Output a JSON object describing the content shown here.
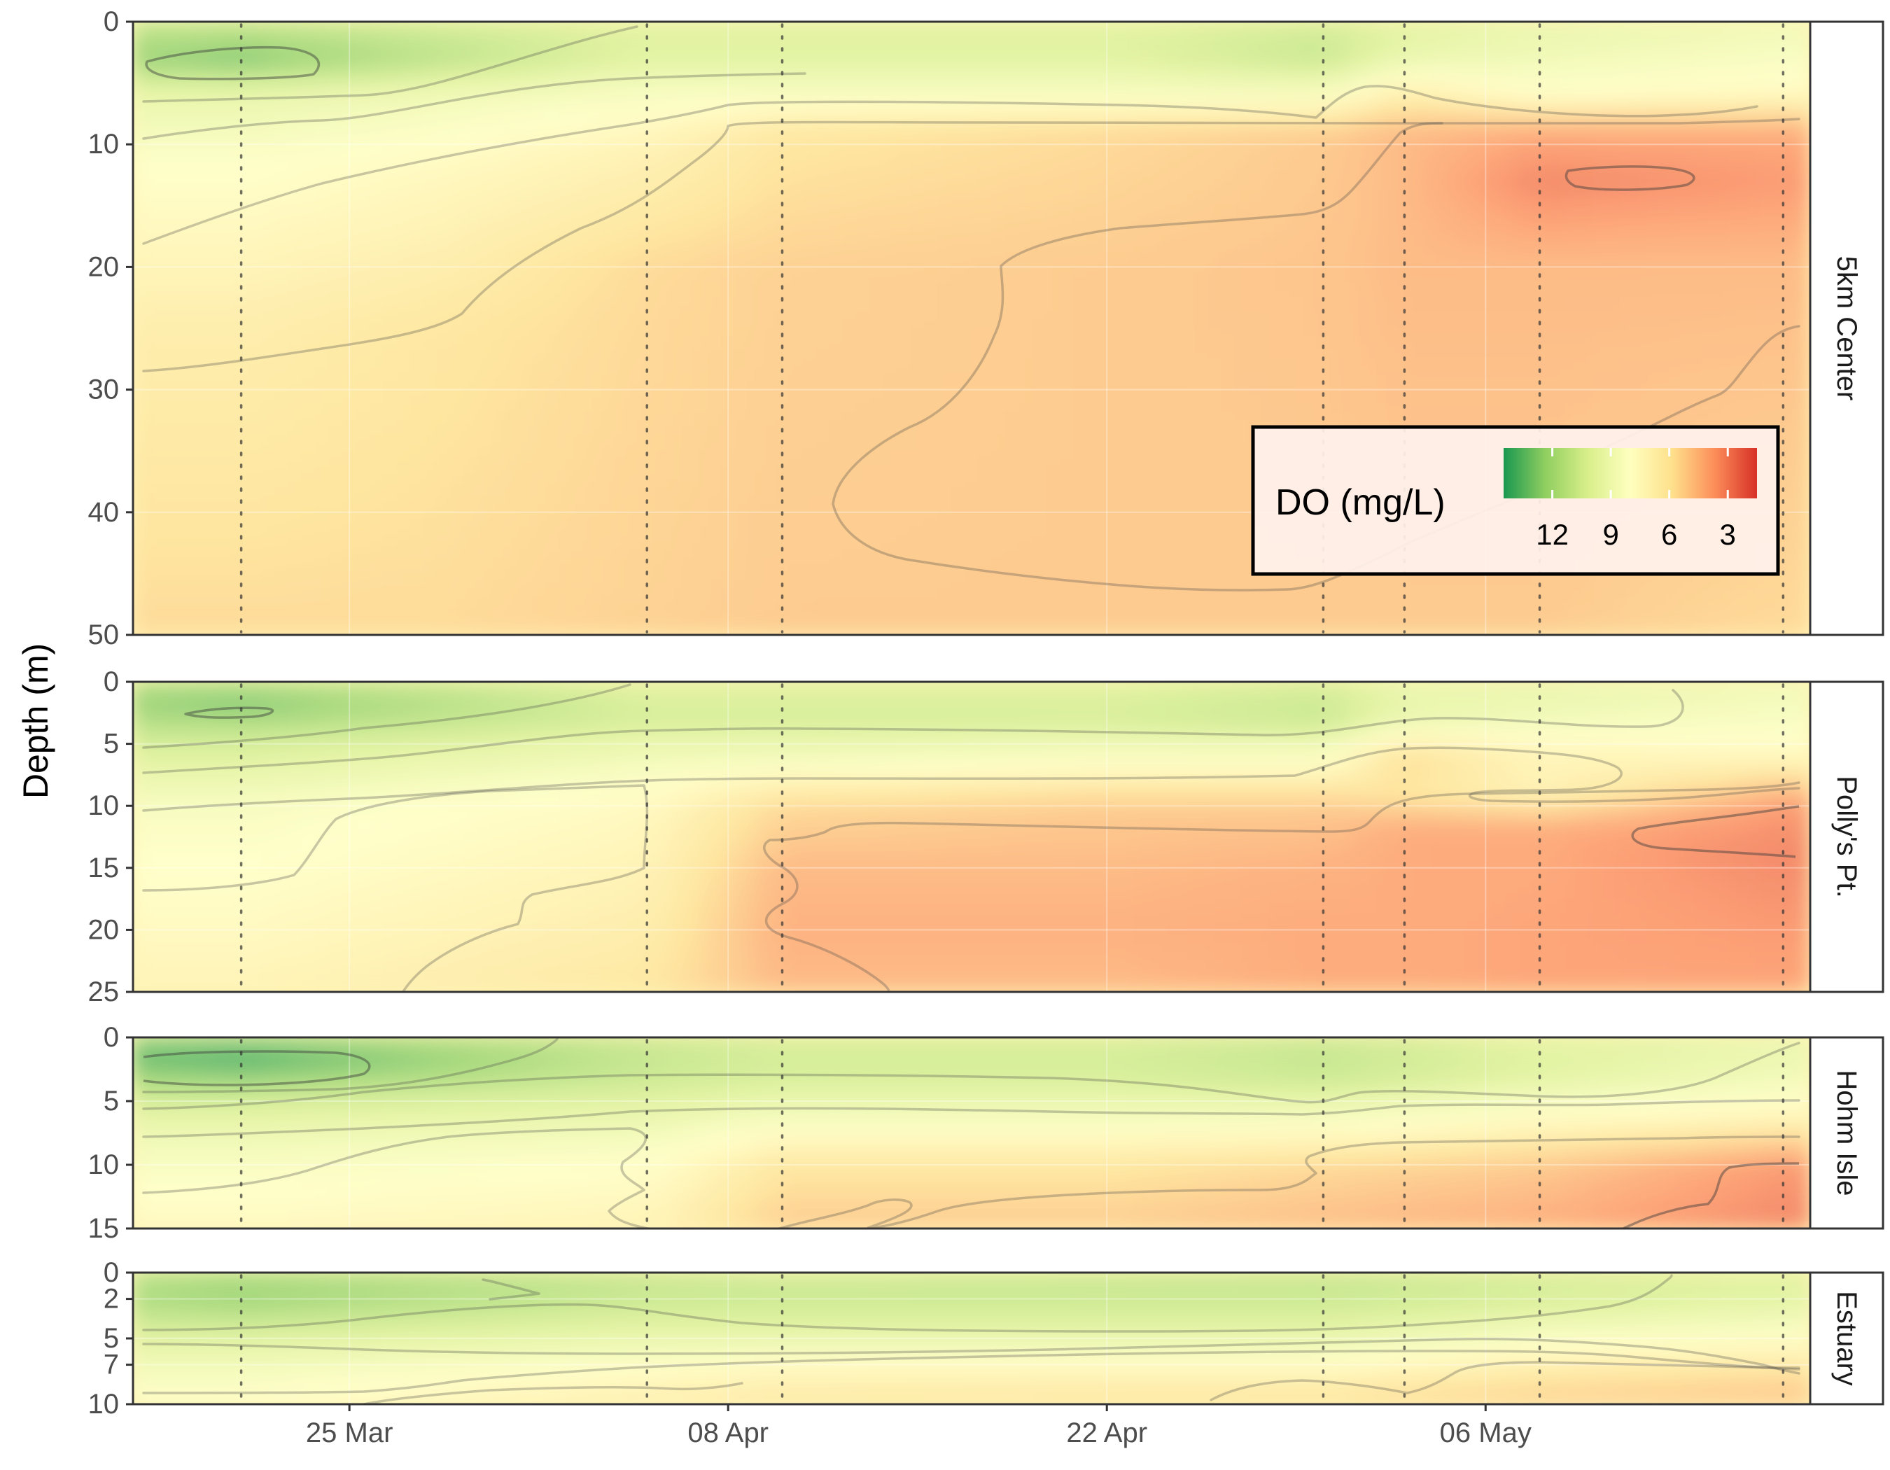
{
  "chart_data": {
    "type": "heatmap",
    "title": "",
    "xlabel": "",
    "ylabel": "Depth (m)",
    "x_ticks": [
      "25 Mar",
      "08 Apr",
      "22 Apr",
      "06 May"
    ],
    "x_range": [
      "2021-03-17",
      "2021-05-18"
    ],
    "sampling_dates": [
      "2021-03-21",
      "2021-04-05",
      "2021-04-10",
      "2021-04-30",
      "2021-05-03",
      "2021-05-08",
      "2021-05-17"
    ],
    "legend": {
      "title": "DO (mg/L)",
      "placement": "inside-top-panel-bottom-right",
      "scale": "RdYlGn reversed",
      "ticks": [
        "12",
        "9",
        "6",
        "3"
      ],
      "range": [
        1.5,
        14.5
      ],
      "colors": [
        "#1a9850",
        "#91cf60",
        "#d9ef8b",
        "#ffffbf",
        "#fee08b",
        "#fc8d59",
        "#d73027"
      ]
    },
    "panels": [
      {
        "site": "5km Center",
        "ylim": [
          50,
          0
        ],
        "y_ticks": [
          "0",
          "10",
          "20",
          "30",
          "40",
          "50"
        ],
        "columns": [
          {
            "date": "2021-03-17",
            "profile": [
              [
                0,
                11
              ],
              [
                3,
                12.5
              ],
              [
                6,
                9.5
              ],
              [
                12,
                8
              ],
              [
                25,
                6.5
              ],
              [
                50,
                5.5
              ]
            ]
          },
          {
            "date": "2021-03-21",
            "profile": [
              [
                0,
                11
              ],
              [
                3,
                13
              ],
              [
                6,
                9.5
              ],
              [
                12,
                8
              ],
              [
                25,
                6.5
              ],
              [
                50,
                5.5
              ]
            ]
          },
          {
            "date": "2021-03-28",
            "profile": [
              [
                0,
                10.5
              ],
              [
                3,
                11.5
              ],
              [
                6,
                9
              ],
              [
                12,
                7.5
              ],
              [
                25,
                6
              ],
              [
                50,
                5.5
              ]
            ]
          },
          {
            "date": "2021-04-05",
            "profile": [
              [
                0,
                10
              ],
              [
                3,
                10
              ],
              [
                6,
                8.5
              ],
              [
                10,
                7
              ],
              [
                20,
                5.5
              ],
              [
                50,
                5.2
              ]
            ]
          },
          {
            "date": "2021-04-10",
            "profile": [
              [
                0,
                10
              ],
              [
                3,
                10
              ],
              [
                6,
                8.5
              ],
              [
                9,
                6
              ],
              [
                20,
                5.2
              ],
              [
                50,
                5
              ]
            ]
          },
          {
            "date": "2021-04-22",
            "profile": [
              [
                0,
                10
              ],
              [
                3,
                10
              ],
              [
                6,
                8.5
              ],
              [
                9,
                5.5
              ],
              [
                20,
                5
              ],
              [
                50,
                5
              ]
            ]
          },
          {
            "date": "2021-04-30",
            "profile": [
              [
                0,
                10.5
              ],
              [
                3,
                11
              ],
              [
                6,
                8.5
              ],
              [
                9,
                5
              ],
              [
                20,
                4.8
              ],
              [
                50,
                5
              ]
            ]
          },
          {
            "date": "2021-05-03",
            "profile": [
              [
                0,
                10
              ],
              [
                3,
                9.5
              ],
              [
                6,
                6.5
              ],
              [
                9,
                4.5
              ],
              [
                20,
                4.5
              ],
              [
                50,
                5
              ]
            ]
          },
          {
            "date": "2021-05-08",
            "profile": [
              [
                0,
                9.5
              ],
              [
                3,
                9
              ],
              [
                6,
                8
              ],
              [
                9,
                4
              ],
              [
                13,
                3
              ],
              [
                20,
                4.5
              ],
              [
                50,
                5
              ]
            ]
          },
          {
            "date": "2021-05-17",
            "profile": [
              [
                0,
                9
              ],
              [
                3,
                8.5
              ],
              [
                6,
                7.5
              ],
              [
                9,
                4
              ],
              [
                13,
                3.5
              ],
              [
                20,
                4.5
              ],
              [
                50,
                5.5
              ]
            ]
          }
        ]
      },
      {
        "site": "Polly's Pt.",
        "ylim": [
          25,
          0
        ],
        "y_ticks": [
          "0",
          "5",
          "10",
          "15",
          "20",
          "25"
        ],
        "columns": [
          {
            "date": "2021-03-17",
            "profile": [
              [
                0,
                11.5
              ],
              [
                2,
                12.5
              ],
              [
                5,
                10.5
              ],
              [
                10,
                8.5
              ],
              [
                20,
                7.5
              ],
              [
                25,
                7
              ]
            ]
          },
          {
            "date": "2021-03-21",
            "profile": [
              [
                0,
                11.5
              ],
              [
                2,
                13
              ],
              [
                5,
                10.5
              ],
              [
                10,
                8.5
              ],
              [
                20,
                7.5
              ],
              [
                25,
                7
              ]
            ]
          },
          {
            "date": "2021-04-05",
            "profile": [
              [
                0,
                10
              ],
              [
                3,
                10.5
              ],
              [
                6,
                9
              ],
              [
                10,
                7.5
              ],
              [
                20,
                6.5
              ],
              [
                25,
                6
              ]
            ]
          },
          {
            "date": "2021-04-10",
            "profile": [
              [
                0,
                10
              ],
              [
                3,
                10.5
              ],
              [
                6,
                9
              ],
              [
                10,
                5.5
              ],
              [
                15,
                4.5
              ],
              [
                20,
                4.2
              ],
              [
                25,
                4.5
              ]
            ]
          },
          {
            "date": "2021-04-22",
            "profile": [
              [
                0,
                10
              ],
              [
                3,
                10.5
              ],
              [
                6,
                8.5
              ],
              [
                10,
                5
              ],
              [
                15,
                4.5
              ],
              [
                20,
                4.2
              ],
              [
                25,
                4.5
              ]
            ]
          },
          {
            "date": "2021-04-30",
            "profile": [
              [
                0,
                10.5
              ],
              [
                3,
                11
              ],
              [
                6,
                8.5
              ],
              [
                10,
                5
              ],
              [
                15,
                4.2
              ],
              [
                20,
                4
              ],
              [
                25,
                4
              ]
            ]
          },
          {
            "date": "2021-05-03",
            "profile": [
              [
                0,
                9.5
              ],
              [
                3,
                9.5
              ],
              [
                6,
                5.5
              ],
              [
                9,
                6
              ],
              [
                12,
                4
              ],
              [
                20,
                4
              ],
              [
                25,
                4
              ]
            ]
          },
          {
            "date": "2021-05-08",
            "profile": [
              [
                0,
                9.5
              ],
              [
                3,
                9
              ],
              [
                6,
                7
              ],
              [
                9,
                7
              ],
              [
                12,
                4
              ],
              [
                20,
                3.8
              ],
              [
                25,
                3.8
              ]
            ]
          },
          {
            "date": "2021-05-17",
            "profile": [
              [
                0,
                9
              ],
              [
                3,
                8.5
              ],
              [
                6,
                7.5
              ],
              [
                10,
                3.5
              ],
              [
                14,
                3
              ],
              [
                20,
                3.5
              ],
              [
                25,
                3.8
              ]
            ]
          }
        ]
      },
      {
        "site": "Hohm Isle",
        "ylim": [
          15,
          0
        ],
        "y_ticks": [
          "0",
          "5",
          "10",
          "15"
        ],
        "columns": [
          {
            "date": "2021-03-17",
            "profile": [
              [
                0,
                12.5
              ],
              [
                2,
                13.5
              ],
              [
                5,
                10.5
              ],
              [
                8,
                9
              ],
              [
                12,
                8
              ],
              [
                15,
                7.5
              ]
            ]
          },
          {
            "date": "2021-03-21",
            "profile": [
              [
                0,
                12.5
              ],
              [
                2,
                14
              ],
              [
                5,
                10.5
              ],
              [
                8,
                9
              ],
              [
                12,
                8
              ],
              [
                15,
                7.5
              ]
            ]
          },
          {
            "date": "2021-04-05",
            "profile": [
              [
                0,
                11
              ],
              [
                3,
                11
              ],
              [
                6,
                9.5
              ],
              [
                10,
                8
              ],
              [
                15,
                7
              ]
            ]
          },
          {
            "date": "2021-04-10",
            "profile": [
              [
                0,
                10.5
              ],
              [
                3,
                10.5
              ],
              [
                6,
                9
              ],
              [
                10,
                6
              ],
              [
                15,
                5
              ]
            ]
          },
          {
            "date": "2021-04-22",
            "profile": [
              [
                0,
                10.5
              ],
              [
                3,
                10.5
              ],
              [
                6,
                9
              ],
              [
                10,
                6
              ],
              [
                15,
                5
              ]
            ]
          },
          {
            "date": "2021-04-30",
            "profile": [
              [
                0,
                11
              ],
              [
                3,
                11
              ],
              [
                6,
                9
              ],
              [
                10,
                5.5
              ],
              [
                15,
                4.5
              ]
            ]
          },
          {
            "date": "2021-05-08",
            "profile": [
              [
                0,
                10
              ],
              [
                3,
                10
              ],
              [
                6,
                8
              ],
              [
                10,
                5
              ],
              [
                15,
                4
              ]
            ]
          },
          {
            "date": "2021-05-17",
            "profile": [
              [
                0,
                9.5
              ],
              [
                3,
                9
              ],
              [
                6,
                7.5
              ],
              [
                10,
                3.5
              ],
              [
                15,
                3
              ]
            ]
          }
        ]
      },
      {
        "site": "Estuary",
        "ylim": [
          10,
          0
        ],
        "y_ticks": [
          "0",
          "2",
          "5",
          "7",
          "10"
        ],
        "columns": [
          {
            "date": "2021-03-17",
            "profile": [
              [
                0,
                11.5
              ],
              [
                2,
                12
              ],
              [
                5,
                10
              ],
              [
                8,
                8.5
              ],
              [
                10,
                8
              ]
            ]
          },
          {
            "date": "2021-03-21",
            "profile": [
              [
                0,
                12
              ],
              [
                2,
                12.5
              ],
              [
                5,
                10
              ],
              [
                8,
                8.5
              ],
              [
                10,
                8
              ]
            ]
          },
          {
            "date": "2021-04-05",
            "profile": [
              [
                0,
                11
              ],
              [
                2,
                11
              ],
              [
                5,
                9.5
              ],
              [
                8,
                7.5
              ],
              [
                10,
                6.5
              ]
            ]
          },
          {
            "date": "2021-04-10",
            "profile": [
              [
                0,
                10.5
              ],
              [
                2,
                11
              ],
              [
                5,
                9.5
              ],
              [
                8,
                7
              ],
              [
                10,
                6
              ]
            ]
          },
          {
            "date": "2021-04-30",
            "profile": [
              [
                0,
                11
              ],
              [
                2,
                11
              ],
              [
                5,
                9.5
              ],
              [
                8,
                7
              ],
              [
                10,
                5.5
              ]
            ]
          },
          {
            "date": "2021-05-08",
            "profile": [
              [
                0,
                10.5
              ],
              [
                2,
                10.5
              ],
              [
                5,
                8.5
              ],
              [
                8,
                6
              ],
              [
                10,
                5
              ]
            ]
          },
          {
            "date": "2021-05-17",
            "profile": [
              [
                0,
                10
              ],
              [
                2,
                10
              ],
              [
                5,
                8
              ],
              [
                8,
                5.5
              ],
              [
                10,
                4.8
              ]
            ]
          }
        ]
      }
    ]
  }
}
